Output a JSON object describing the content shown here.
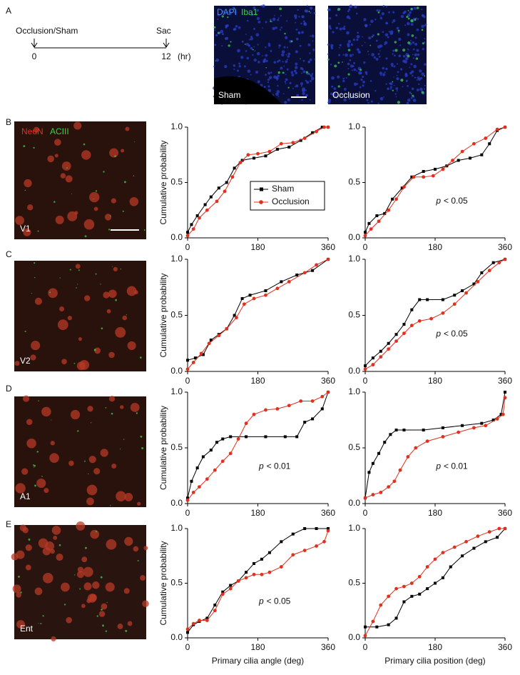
{
  "panel_labels": [
    "A",
    "B",
    "C",
    "D",
    "E"
  ],
  "timeline": {
    "start_label": "Occlusion/Sham",
    "end_label": "Sac",
    "start_tick": 0,
    "end_tick": 12,
    "unit": "(hr)"
  },
  "images": [
    {
      "stain_1": "DAPI",
      "stain_2": "Iba1",
      "label": "Sham"
    },
    {
      "label": "Occlusion"
    }
  ],
  "regions": [
    {
      "stain_1": "NeuN",
      "stain_2": "ACIII",
      "label": "V1"
    },
    {
      "label": "V2"
    },
    {
      "label": "A1"
    },
    {
      "label": "Ent"
    }
  ],
  "chart_data": [
    {
      "type": "line",
      "ylabel": "Cumulative probability",
      "legend": true,
      "xlim": [
        0,
        360
      ],
      "xticks": [
        0,
        180,
        360
      ],
      "ylim": [
        0,
        1
      ],
      "yticks": [
        {
          "value": 0,
          "label": "0.0"
        },
        0.5,
        {
          "value": 1,
          "label": "1.0"
        }
      ],
      "series": [
        {
          "name": "Sham",
          "color": "#000000",
          "marker": "square",
          "x": [
            0,
            10,
            25,
            45,
            60,
            80,
            100,
            120,
            140,
            170,
            200,
            230,
            260,
            290,
            320,
            345,
            360
          ],
          "values": [
            0.05,
            0.12,
            0.2,
            0.3,
            0.37,
            0.45,
            0.5,
            0.63,
            0.7,
            0.72,
            0.74,
            0.8,
            0.82,
            0.88,
            0.95,
            1,
            1
          ]
        },
        {
          "name": "Occlusion",
          "color": "#e0301e",
          "marker": "circle",
          "x": [
            0,
            15,
            30,
            50,
            75,
            95,
            115,
            135,
            155,
            180,
            210,
            240,
            270,
            300,
            330,
            350,
            360
          ],
          "values": [
            0.02,
            0.08,
            0.18,
            0.25,
            0.33,
            0.42,
            0.55,
            0.68,
            0.75,
            0.76,
            0.78,
            0.85,
            0.86,
            0.9,
            0.96,
            1,
            1
          ]
        }
      ]
    },
    {
      "type": "line",
      "annotation": {
        "var": "p",
        "text": "< 0.05"
      },
      "xlim": [
        0,
        360
      ],
      "xticks": [
        0,
        180,
        360
      ],
      "ylim": [
        0,
        1
      ],
      "yticks": [
        {
          "value": 0,
          "label": "0.0"
        },
        0.5,
        {
          "value": 1,
          "label": "1.0"
        }
      ],
      "series": [
        {
          "color": "#000000",
          "marker": "square",
          "x": [
            0,
            10,
            30,
            50,
            70,
            95,
            120,
            150,
            180,
            210,
            240,
            270,
            300,
            320,
            340,
            360
          ],
          "values": [
            0.05,
            0.13,
            0.2,
            0.22,
            0.35,
            0.45,
            0.55,
            0.6,
            0.62,
            0.65,
            0.7,
            0.72,
            0.75,
            0.85,
            0.97,
            1
          ]
        },
        {
          "color": "#e0301e",
          "marker": "circle",
          "x": [
            0,
            15,
            35,
            60,
            80,
            100,
            125,
            150,
            175,
            200,
            225,
            250,
            280,
            310,
            340,
            360
          ],
          "values": [
            0.02,
            0.08,
            0.15,
            0.25,
            0.35,
            0.46,
            0.55,
            0.55,
            0.56,
            0.62,
            0.7,
            0.78,
            0.85,
            0.9,
            0.98,
            1
          ]
        }
      ]
    },
    {
      "type": "line",
      "ylabel": "Cumulative probability",
      "xlim": [
        0,
        360
      ],
      "xticks": [
        0,
        180,
        360
      ],
      "ylim": [
        0,
        1
      ],
      "yticks": [
        {
          "value": 0,
          "label": "0.0"
        },
        0.5,
        {
          "value": 1,
          "label": "1.0"
        }
      ],
      "series": [
        {
          "color": "#000000",
          "marker": "square",
          "x": [
            0,
            20,
            40,
            60,
            80,
            100,
            120,
            140,
            160,
            200,
            240,
            280,
            320,
            360
          ],
          "values": [
            0.1,
            0.12,
            0.15,
            0.28,
            0.33,
            0.38,
            0.5,
            0.65,
            0.68,
            0.72,
            0.8,
            0.86,
            0.9,
            1
          ]
        },
        {
          "color": "#e0301e",
          "marker": "circle",
          "x": [
            0,
            15,
            35,
            55,
            80,
            100,
            125,
            145,
            170,
            200,
            230,
            260,
            300,
            330,
            360
          ],
          "values": [
            0.02,
            0.08,
            0.16,
            0.25,
            0.32,
            0.38,
            0.48,
            0.6,
            0.65,
            0.68,
            0.74,
            0.8,
            0.88,
            0.95,
            1
          ]
        }
      ]
    },
    {
      "type": "line",
      "annotation": {
        "var": "p",
        "text": "< 0.05"
      },
      "xlim": [
        0,
        360
      ],
      "xticks": [
        0,
        180,
        360
      ],
      "ylim": [
        0,
        1
      ],
      "yticks": [
        {
          "value": 0,
          "label": "0.0"
        },
        0.5,
        {
          "value": 1,
          "label": "1.0"
        }
      ],
      "series": [
        {
          "color": "#000000",
          "marker": "square",
          "x": [
            0,
            20,
            40,
            60,
            80,
            100,
            120,
            140,
            160,
            200,
            230,
            250,
            280,
            300,
            330,
            360
          ],
          "values": [
            0.05,
            0.12,
            0.18,
            0.25,
            0.33,
            0.42,
            0.55,
            0.64,
            0.64,
            0.64,
            0.68,
            0.72,
            0.78,
            0.88,
            0.97,
            1
          ]
        },
        {
          "color": "#e0301e",
          "marker": "circle",
          "x": [
            0,
            20,
            40,
            60,
            80,
            100,
            120,
            140,
            170,
            200,
            230,
            260,
            290,
            320,
            345,
            360
          ],
          "values": [
            0.02,
            0.06,
            0.13,
            0.2,
            0.27,
            0.34,
            0.41,
            0.45,
            0.47,
            0.52,
            0.6,
            0.7,
            0.8,
            0.9,
            0.97,
            1
          ]
        }
      ]
    },
    {
      "type": "line",
      "ylabel": "Cumulative probability",
      "annotation": {
        "var": "p",
        "text": "< 0.01"
      },
      "xlim": [
        0,
        360
      ],
      "xticks": [
        0,
        180,
        360
      ],
      "ylim": [
        0,
        1
      ],
      "yticks": [
        {
          "value": 0,
          "label": "0.0"
        },
        0.5,
        {
          "value": 1,
          "label": "1.0"
        }
      ],
      "series": [
        {
          "color": "#000000",
          "marker": "square",
          "x": [
            0,
            10,
            25,
            40,
            60,
            75,
            90,
            110,
            150,
            200,
            250,
            280,
            300,
            320,
            345,
            360
          ],
          "values": [
            0.05,
            0.2,
            0.32,
            0.42,
            0.48,
            0.55,
            0.58,
            0.6,
            0.6,
            0.6,
            0.6,
            0.6,
            0.73,
            0.76,
            0.85,
            1
          ]
        },
        {
          "color": "#e0301e",
          "marker": "circle",
          "x": [
            0,
            15,
            30,
            50,
            70,
            90,
            110,
            130,
            150,
            170,
            200,
            230,
            260,
            290,
            320,
            345,
            360
          ],
          "values": [
            0.03,
            0.1,
            0.15,
            0.22,
            0.3,
            0.38,
            0.45,
            0.58,
            0.72,
            0.8,
            0.84,
            0.85,
            0.88,
            0.92,
            0.92,
            0.96,
            1
          ]
        }
      ]
    },
    {
      "type": "line",
      "annotation": {
        "var": "p",
        "text": "< 0.01"
      },
      "xlim": [
        0,
        360
      ],
      "xticks": [
        0,
        180,
        360
      ],
      "ylim": [
        0,
        1
      ],
      "yticks": [
        {
          "value": 0,
          "label": "0.0"
        },
        0.5,
        {
          "value": 1,
          "label": "1.0"
        }
      ],
      "series": [
        {
          "color": "#000000",
          "marker": "square",
          "x": [
            0,
            10,
            20,
            35,
            50,
            65,
            80,
            100,
            150,
            200,
            250,
            300,
            330,
            350,
            360
          ],
          "values": [
            0.05,
            0.28,
            0.36,
            0.45,
            0.55,
            0.62,
            0.66,
            0.66,
            0.66,
            0.68,
            0.7,
            0.72,
            0.75,
            0.8,
            1
          ]
        },
        {
          "color": "#e0301e",
          "marker": "circle",
          "x": [
            0,
            20,
            40,
            60,
            75,
            90,
            110,
            130,
            160,
            200,
            240,
            280,
            310,
            340,
            355,
            360
          ],
          "values": [
            0.05,
            0.08,
            0.1,
            0.15,
            0.2,
            0.3,
            0.42,
            0.5,
            0.56,
            0.6,
            0.64,
            0.68,
            0.7,
            0.76,
            0.8,
            0.95
          ]
        }
      ]
    },
    {
      "type": "line",
      "ylabel": "Cumulative probability",
      "xlabel": "Primary cilia angle (deg)",
      "annotation": {
        "var": "p",
        "text": "< 0.05"
      },
      "xlim": [
        0,
        360
      ],
      "xticks": [
        0,
        180,
        360
      ],
      "ylim": [
        0,
        1
      ],
      "yticks": [
        {
          "value": 0,
          "label": "0.0"
        },
        0.5,
        {
          "value": 1,
          "label": "1.0"
        }
      ],
      "series": [
        {
          "color": "#000000",
          "marker": "square",
          "x": [
            0,
            15,
            30,
            50,
            70,
            90,
            110,
            130,
            150,
            170,
            190,
            210,
            240,
            270,
            300,
            330,
            360
          ],
          "values": [
            0.05,
            0.12,
            0.15,
            0.18,
            0.3,
            0.42,
            0.48,
            0.52,
            0.6,
            0.68,
            0.72,
            0.78,
            0.88,
            0.95,
            1,
            1,
            1
          ]
        },
        {
          "color": "#e0301e",
          "marker": "circle",
          "x": [
            0,
            15,
            30,
            50,
            70,
            90,
            110,
            130,
            150,
            170,
            190,
            210,
            240,
            270,
            300,
            330,
            350,
            360
          ],
          "values": [
            0.08,
            0.13,
            0.16,
            0.16,
            0.25,
            0.4,
            0.45,
            0.52,
            0.55,
            0.58,
            0.58,
            0.6,
            0.65,
            0.76,
            0.8,
            0.84,
            0.88,
            0.98
          ]
        }
      ]
    },
    {
      "type": "line",
      "xlabel": "Primary cilia position (deg)",
      "xlim": [
        0,
        360
      ],
      "xticks": [
        0,
        180,
        360
      ],
      "ylim": [
        0,
        1
      ],
      "yticks": [
        {
          "value": 0,
          "label": "0.0"
        },
        0.5,
        {
          "value": 1,
          "label": "1.0"
        }
      ],
      "series": [
        {
          "color": "#000000",
          "marker": "square",
          "x": [
            0,
            30,
            60,
            80,
            100,
            120,
            140,
            160,
            180,
            200,
            220,
            250,
            280,
            310,
            340,
            360
          ],
          "values": [
            0.1,
            0.1,
            0.12,
            0.18,
            0.33,
            0.38,
            0.4,
            0.45,
            0.5,
            0.55,
            0.65,
            0.75,
            0.82,
            0.88,
            0.92,
            1
          ]
        },
        {
          "color": "#e0301e",
          "marker": "circle",
          "x": [
            0,
            20,
            40,
            60,
            80,
            100,
            120,
            140,
            160,
            180,
            200,
            230,
            260,
            290,
            320,
            345,
            360
          ],
          "values": [
            0.02,
            0.15,
            0.3,
            0.38,
            0.45,
            0.47,
            0.5,
            0.56,
            0.65,
            0.72,
            0.78,
            0.83,
            0.88,
            0.93,
            0.97,
            1,
            1
          ]
        }
      ]
    }
  ]
}
